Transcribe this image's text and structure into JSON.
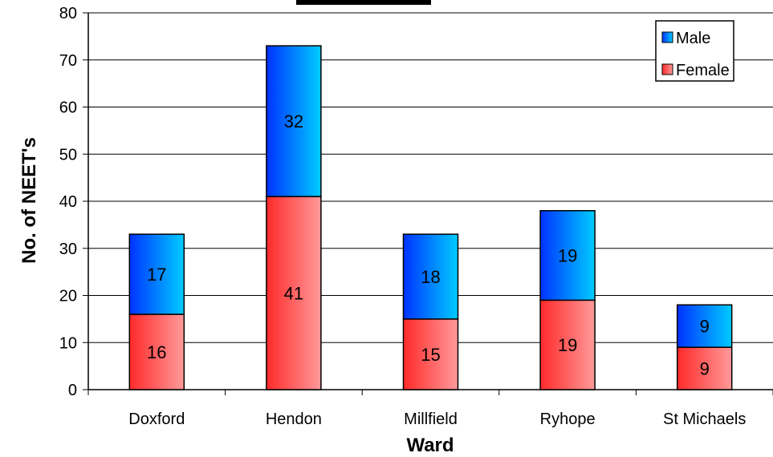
{
  "chart_data": {
    "type": "bar",
    "stacked": true,
    "title": "",
    "xlabel": "Ward",
    "ylabel": "No. of NEET's",
    "categories": [
      "Doxford",
      "Hendon",
      "Millfield",
      "Ryhope",
      "St Michaels"
    ],
    "series": [
      {
        "name": "Female",
        "values": [
          16,
          41,
          15,
          19,
          9
        ],
        "color": "#ff4d4d"
      },
      {
        "name": "Male",
        "values": [
          17,
          32,
          18,
          19,
          9
        ],
        "color": "#1a66ff"
      }
    ],
    "ylim": [
      0,
      80
    ],
    "yticks": [
      0,
      10,
      20,
      30,
      40,
      50,
      60,
      70,
      80
    ],
    "grid": true,
    "legend": {
      "position": "top-right",
      "order": [
        "Male",
        "Female"
      ]
    },
    "data_labels": true
  }
}
